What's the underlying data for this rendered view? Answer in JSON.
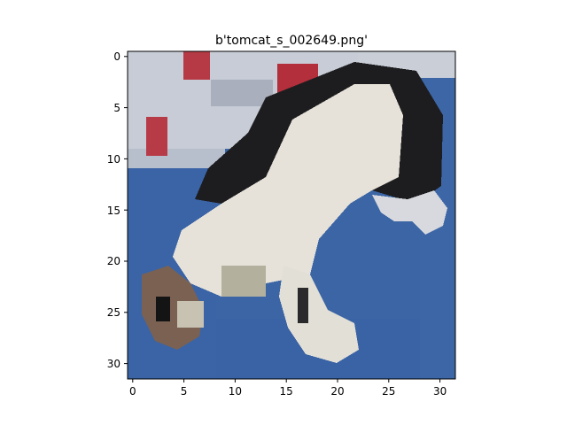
{
  "figure": {
    "title": "b'tomcat_s_002649.png'"
  },
  "image": {
    "grid_size": [
      32,
      32
    ],
    "subject": "low-resolution pixelated photo of a black-and-white cat lying on its back on a blue surface, with a red and white patterned blanket in the upper left",
    "colors": {
      "background_blue": "#3a64a6",
      "cat_white": "#e7e3da",
      "cat_black": "#1c1c1c",
      "blanket_light": "#c7ccd6",
      "blanket_red": "#b53a45",
      "paw_brown": "#7a6152"
    }
  },
  "axes": {
    "x_ticks": [
      "0",
      "5",
      "10",
      "15",
      "20",
      "25",
      "30"
    ],
    "y_ticks": [
      "0",
      "5",
      "10",
      "15",
      "20",
      "25",
      "30"
    ],
    "x_range": [
      -0.5,
      31.5
    ],
    "y_range": [
      -0.5,
      31.5
    ],
    "y_inverted": true
  }
}
